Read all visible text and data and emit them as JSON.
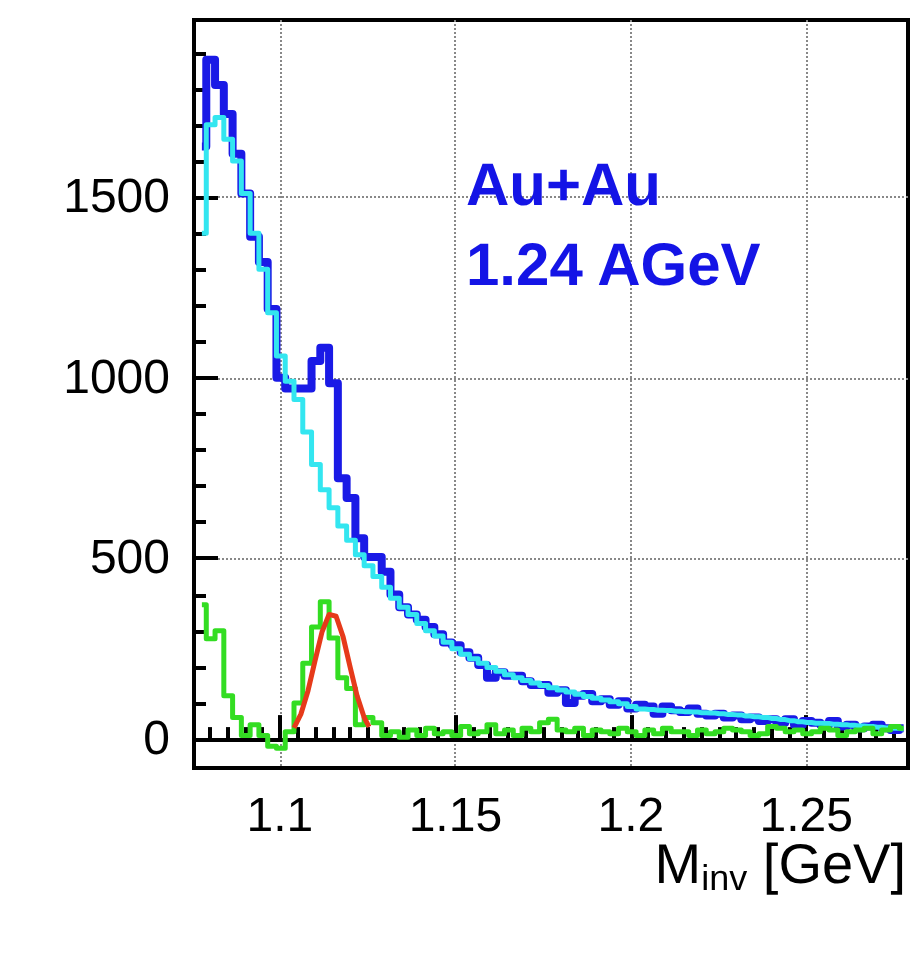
{
  "chart_data": {
    "type": "step",
    "xlabel": "M$_{inv}$ [GeV]",
    "annotations": [
      "Au+Au",
      "1.24 AGeV"
    ],
    "xlim": [
      1.0755,
      1.279
    ],
    "ylim": [
      -80,
      1990
    ],
    "xticks": [
      {
        "value": 1.08,
        "label": null
      },
      {
        "value": 1.085,
        "label": null
      },
      {
        "value": 1.09,
        "label": null
      },
      {
        "value": 1.095,
        "label": null
      },
      1.1,
      {
        "value": 1.105,
        "label": null
      },
      {
        "value": 1.11,
        "label": null
      },
      {
        "value": 1.115,
        "label": null
      },
      {
        "value": 1.12,
        "label": null
      },
      {
        "value": 1.125,
        "label": null
      },
      {
        "value": 1.13,
        "label": null
      },
      {
        "value": 1.135,
        "label": null
      },
      {
        "value": 1.14,
        "label": null
      },
      {
        "value": 1.145,
        "label": null
      },
      1.15,
      {
        "value": 1.155,
        "label": null
      },
      {
        "value": 1.16,
        "label": null
      },
      {
        "value": 1.165,
        "label": null
      },
      {
        "value": 1.17,
        "label": null
      },
      {
        "value": 1.175,
        "label": null
      },
      {
        "value": 1.18,
        "label": null
      },
      {
        "value": 1.185,
        "label": null
      },
      {
        "value": 1.19,
        "label": null
      },
      {
        "value": 1.195,
        "label": null
      },
      1.2,
      {
        "value": 1.205,
        "label": null
      },
      {
        "value": 1.21,
        "label": null
      },
      {
        "value": 1.215,
        "label": null
      },
      {
        "value": 1.22,
        "label": null
      },
      {
        "value": 1.225,
        "label": null
      },
      {
        "value": 1.23,
        "label": null
      },
      {
        "value": 1.235,
        "label": null
      },
      {
        "value": 1.24,
        "label": null
      },
      {
        "value": 1.245,
        "label": null
      },
      1.25,
      {
        "value": 1.255,
        "label": null
      },
      {
        "value": 1.26,
        "label": null
      },
      {
        "value": 1.265,
        "label": null
      },
      {
        "value": 1.27,
        "label": null
      },
      {
        "value": 1.275,
        "label": null
      }
    ],
    "yticks": [
      0,
      {
        "value": 100,
        "label": null
      },
      {
        "value": 200,
        "label": null
      },
      {
        "value": 300,
        "label": null
      },
      {
        "value": 400,
        "label": null
      },
      500,
      {
        "value": 600,
        "label": null
      },
      {
        "value": 700,
        "label": null
      },
      {
        "value": 800,
        "label": null
      },
      {
        "value": 900,
        "label": null
      },
      1000,
      {
        "value": 1100,
        "label": null
      },
      {
        "value": 1200,
        "label": null
      },
      {
        "value": 1300,
        "label": null
      },
      {
        "value": 1400,
        "label": null
      },
      1500,
      {
        "value": 1600,
        "label": null
      },
      {
        "value": 1700,
        "label": null
      },
      {
        "value": 1800,
        "label": null
      },
      {
        "value": 1900,
        "label": null
      }
    ],
    "grid": true,
    "x": [
      1.07775,
      1.08025,
      1.08275,
      1.08525,
      1.08775,
      1.09025,
      1.09275,
      1.09525,
      1.09775,
      1.10025,
      1.10275,
      1.10525,
      1.10775,
      1.11025,
      1.11275,
      1.11525,
      1.11775,
      1.12025,
      1.12275,
      1.12525,
      1.12775,
      1.13025,
      1.13275,
      1.13525,
      1.13775,
      1.14025,
      1.14275,
      1.14525,
      1.14775,
      1.15025,
      1.15275,
      1.15525,
      1.15775,
      1.16025,
      1.16275,
      1.16525,
      1.16775,
      1.17025,
      1.17275,
      1.17525,
      1.17775,
      1.18025,
      1.18275,
      1.18525,
      1.18775,
      1.19025,
      1.19275,
      1.19525,
      1.19775,
      1.20025,
      1.20275,
      1.20525,
      1.20775,
      1.21025,
      1.21275,
      1.21525,
      1.21775,
      1.22025,
      1.22275,
      1.22525,
      1.22775,
      1.23025,
      1.23275,
      1.23525,
      1.23775,
      1.24025,
      1.24275,
      1.24525,
      1.24775,
      1.25025,
      1.25275,
      1.25525,
      1.25775,
      1.26025,
      1.26275,
      1.26525,
      1.26775,
      1.27025,
      1.27275,
      1.27525,
      1.27775
    ],
    "series": [
      {
        "color": "#1a1ae6",
        "values": [
          1640,
          1880,
          1810,
          1730,
          1620,
          1510,
          1390,
          1320,
          1190,
          1000,
          970,
          970,
          970,
          1046,
          1083,
          985,
          722,
          667,
          556,
          504,
          504,
          463,
          400,
          365,
          345,
          330,
          310,
          290,
          267,
          260,
          240,
          225,
          205,
          170,
          185,
          175,
          175,
          160,
          150,
          150,
          128,
          135,
          100,
          120,
          125,
          105,
          110,
          95,
          105,
          85,
          95,
          90,
          70,
          90,
          80,
          75,
          85,
          70,
          65,
          70,
          60,
          65,
          55,
          60,
          50,
          55,
          45,
          55,
          40,
          50,
          45,
          40,
          50,
          35,
          40,
          30,
          35,
          40,
          30,
          25,
          30
        ]
      },
      {
        "color": "#33e6f0",
        "values": [
          1400,
          1700,
          1720,
          1660,
          1600,
          1510,
          1400,
          1300,
          1180,
          1060,
          990,
          940,
          850,
          760,
          690,
          640,
          590,
          550,
          510,
          480,
          450,
          420,
          390,
          365,
          345,
          320,
          300,
          285,
          268,
          250,
          235,
          222,
          210,
          198,
          188,
          178,
          170,
          162,
          155,
          148,
          142,
          136,
          130,
          124,
          118,
          113,
          108,
          103,
          98,
          90,
          83,
          82,
          80,
          79,
          77,
          76,
          75,
          73,
          72,
          70,
          68,
          67,
          64,
          62,
          60,
          57,
          54,
          51,
          48,
          46,
          44,
          43,
          41,
          40,
          38,
          36,
          35,
          33,
          31,
          30,
          28
        ]
      },
      {
        "color": "#33dd22",
        "values": [
          372,
          278,
          300,
          120,
          60,
          10,
          40,
          10,
          -20,
          -25,
          20,
          100,
          210,
          310,
          380,
          280,
          170,
          140,
          40,
          60,
          45,
          10,
          20,
          5,
          25,
          10,
          30,
          15,
          20,
          10,
          35,
          15,
          20,
          40,
          15,
          25,
          10,
          30,
          20,
          45,
          55,
          25,
          20,
          30,
          10,
          25,
          20,
          15,
          30,
          20,
          10,
          25,
          15,
          30,
          20,
          20,
          10,
          25,
          15,
          20,
          30,
          25,
          20,
          10,
          15,
          35,
          30,
          20,
          25,
          15,
          20,
          30,
          25,
          10,
          20,
          25,
          30,
          15,
          25,
          35,
          30
        ]
      },
      {
        "type": "line",
        "color": "#e63a1a",
        "x": [
          1.104,
          1.106,
          1.108,
          1.11,
          1.112,
          1.114,
          1.116,
          1.118,
          1.12,
          1.122,
          1.124,
          1.1254
        ],
        "values": [
          31,
          70,
          134,
          217,
          297,
          345,
          340,
          283,
          199,
          119,
          60,
          34
        ]
      }
    ]
  }
}
